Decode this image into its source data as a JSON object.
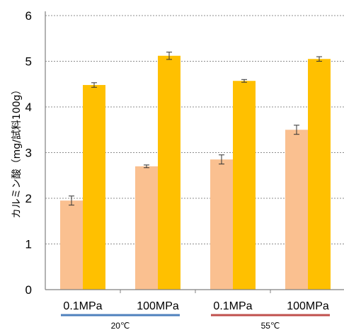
{
  "chart_data": {
    "type": "bar",
    "ylabel": "カルミン酸（mg/試料100g）",
    "ylim": [
      0,
      6
    ],
    "yticks": [
      "0",
      "1",
      "2",
      "3",
      "4",
      "5",
      "6"
    ],
    "grid": true,
    "categories": [
      "0.1MPa",
      "100MPa",
      "0.1MPa",
      "100MPa"
    ],
    "groups": [
      {
        "label": "20℃",
        "color": "#4f81bd"
      },
      {
        "label": "55℃",
        "color": "#c0504d"
      }
    ],
    "series": [
      {
        "color": "#fac090",
        "values": [
          1.95,
          2.7,
          2.85,
          3.5
        ],
        "errors": [
          0.1,
          0.03,
          0.1,
          0.1
        ]
      },
      {
        "color": "#ffc000",
        "values": [
          4.48,
          5.12,
          4.57,
          5.05
        ],
        "errors": [
          0.05,
          0.08,
          0.03,
          0.05
        ]
      }
    ]
  }
}
